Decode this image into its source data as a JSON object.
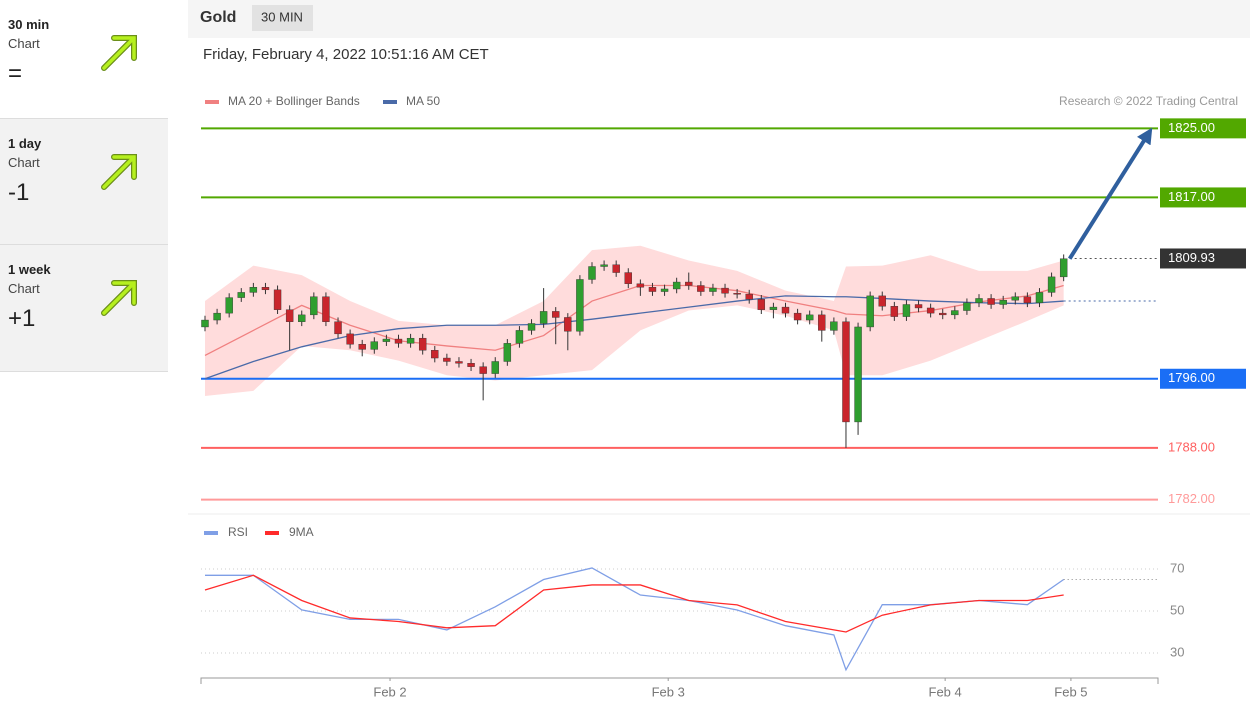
{
  "sidebar": [
    {
      "period": "30 min",
      "kind": "Chart",
      "signal": "="
    },
    {
      "period": "1 day",
      "kind": "Chart",
      "signal": "-1"
    },
    {
      "period": "1 week",
      "kind": "Chart",
      "signal": "+1"
    }
  ],
  "chart_data": [
    {
      "type": "candlestick",
      "title": "Gold",
      "timeframe": "30 MIN",
      "subtitle": "Friday, February 4, 2022 10:51:16 AM CET",
      "credit": "Research © 2022 Trading Central",
      "up_color": "#2f9e2f",
      "down_color": "#c9252c",
      "xlim": [
        -0.33,
        78.8
      ],
      "ylim": [
        1780.8,
        1826.2
      ],
      "open": [
        1802.0,
        1802.8,
        1803.6,
        1805.4,
        1806.0,
        1806.6,
        1806.3,
        1804.0,
        1802.6,
        1803.4,
        1805.5,
        1802.6,
        1801.2,
        1800.0,
        1799.4,
        1800.3,
        1800.6,
        1800.1,
        1800.7,
        1799.3,
        1798.4,
        1798.0,
        1797.8,
        1797.4,
        1796.6,
        1798.0,
        1800.1,
        1801.6,
        1802.4,
        1803.8,
        1803.1,
        1801.5,
        1807.5,
        1809.0,
        1809.2,
        1808.3,
        1807.0,
        1806.6,
        1806.1,
        1806.4,
        1807.2,
        1806.8,
        1806.1,
        1806.5,
        1805.9,
        1805.8,
        1805.2,
        1804.0,
        1804.3,
        1803.6,
        1802.8,
        1803.4,
        1801.6,
        1802.6,
        1791.0,
        1802.0,
        1805.6,
        1804.4,
        1803.2,
        1804.6,
        1804.2,
        1803.6,
        1803.4,
        1803.9,
        1804.8,
        1805.3,
        1804.6,
        1805.1,
        1805.5,
        1804.8,
        1806.0,
        1807.8
      ],
      "high": [
        1803.3,
        1804.1,
        1805.9,
        1806.5,
        1807.1,
        1807.1,
        1806.8,
        1804.5,
        1803.9,
        1806.0,
        1806.0,
        1803.1,
        1801.7,
        1800.5,
        1800.8,
        1801.1,
        1801.1,
        1801.2,
        1801.2,
        1799.8,
        1798.9,
        1798.5,
        1798.3,
        1797.9,
        1798.5,
        1800.6,
        1802.1,
        1802.9,
        1806.5,
        1804.3,
        1803.6,
        1808.0,
        1809.5,
        1809.7,
        1809.7,
        1808.8,
        1807.5,
        1807.1,
        1806.9,
        1807.7,
        1808.3,
        1807.3,
        1807.0,
        1807.0,
        1806.4,
        1806.3,
        1805.7,
        1804.8,
        1804.8,
        1804.1,
        1803.9,
        1803.9,
        1803.1,
        1803.1,
        1802.5,
        1806.1,
        1806.1,
        1804.9,
        1805.1,
        1805.1,
        1804.7,
        1804.1,
        1804.4,
        1805.3,
        1805.8,
        1805.8,
        1805.6,
        1806.0,
        1806.0,
        1806.5,
        1808.3,
        1810.4
      ],
      "low": [
        1801.5,
        1802.3,
        1803.1,
        1804.9,
        1805.5,
        1805.8,
        1803.5,
        1799.3,
        1802.1,
        1802.9,
        1802.1,
        1800.7,
        1799.5,
        1798.6,
        1798.9,
        1799.8,
        1799.6,
        1799.6,
        1798.8,
        1797.9,
        1797.5,
        1797.3,
        1796.9,
        1793.5,
        1796.1,
        1797.5,
        1799.6,
        1801.1,
        1801.9,
        1800.0,
        1799.3,
        1801.0,
        1807.0,
        1808.5,
        1807.8,
        1806.5,
        1805.6,
        1805.6,
        1805.6,
        1805.9,
        1806.3,
        1805.6,
        1805.6,
        1805.4,
        1805.3,
        1804.7,
        1803.5,
        1803.0,
        1803.1,
        1802.3,
        1802.3,
        1800.3,
        1801.1,
        1788.0,
        1789.5,
        1801.5,
        1803.9,
        1802.7,
        1802.7,
        1803.7,
        1803.1,
        1802.9,
        1802.9,
        1803.4,
        1804.3,
        1804.1,
        1804.1,
        1804.6,
        1804.3,
        1804.3,
        1805.5,
        1807.3
      ],
      "close": [
        1802.8,
        1803.6,
        1805.4,
        1806.0,
        1806.6,
        1806.3,
        1804.0,
        1802.6,
        1803.4,
        1805.5,
        1802.6,
        1801.2,
        1800.0,
        1799.4,
        1800.3,
        1800.6,
        1800.1,
        1800.7,
        1799.3,
        1798.4,
        1798.0,
        1797.8,
        1797.4,
        1796.6,
        1798.0,
        1800.1,
        1801.6,
        1802.4,
        1803.8,
        1803.1,
        1801.5,
        1807.5,
        1809.0,
        1809.2,
        1808.3,
        1807.0,
        1806.6,
        1806.1,
        1806.4,
        1807.2,
        1806.8,
        1806.1,
        1806.5,
        1805.9,
        1805.8,
        1805.2,
        1804.0,
        1804.3,
        1803.6,
        1802.8,
        1803.4,
        1801.6,
        1802.6,
        1791.0,
        1802.0,
        1805.6,
        1804.4,
        1803.2,
        1804.6,
        1804.2,
        1803.6,
        1803.4,
        1803.9,
        1804.8,
        1805.3,
        1804.6,
        1805.1,
        1805.5,
        1804.8,
        1806.0,
        1807.8,
        1809.9
      ],
      "line_x": [
        0,
        4,
        8,
        12,
        16,
        20,
        24,
        28,
        32,
        36,
        40,
        44,
        48,
        52,
        53,
        56,
        60,
        64,
        68,
        71
      ],
      "series": [
        {
          "name": "MA 20 + Bollinger Bands",
          "color": "#f08080",
          "band_color": "#ffdcdc",
          "values": [
            1798.7,
            1801.6,
            1804.5,
            1802.2,
            1800.4,
            1799.8,
            1799.3,
            1801.0,
            1805.0,
            1806.8,
            1806.8,
            1806.2,
            1805.0,
            1803.9,
            1803.5,
            1803.3,
            1803.9,
            1804.9,
            1805.6,
            1806.8
          ],
          "upper": [
            1805.0,
            1809.1,
            1808.0,
            1805.0,
            1802.7,
            1802.2,
            1802.2,
            1805.0,
            1810.9,
            1811.4,
            1809.7,
            1808.5,
            1806.2,
            1805.0,
            1809.0,
            1809.1,
            1810.3,
            1808.5,
            1808.5,
            1809.7
          ],
          "lower": [
            1794.0,
            1794.6,
            1799.8,
            1799.3,
            1798.1,
            1796.4,
            1795.8,
            1796.4,
            1797.0,
            1801.6,
            1803.9,
            1804.5,
            1803.3,
            1801.6,
            1796.4,
            1796.4,
            1798.1,
            1800.4,
            1802.7,
            1804.5
          ]
        },
        {
          "name": "MA 50",
          "color": "#4a6aa8",
          "extend_last": true,
          "values": [
            1796.0,
            1798.0,
            1799.7,
            1801.0,
            1801.8,
            1802.2,
            1802.2,
            1802.3,
            1802.9,
            1803.6,
            1804.3,
            1805.0,
            1805.6,
            1805.5,
            1805.5,
            1805.3,
            1805.0,
            1804.8,
            1804.7,
            1805.0
          ]
        }
      ],
      "levels": [
        {
          "value": 1825,
          "label": "1825.00",
          "color": "#52a800",
          "style": "solid",
          "tag": true
        },
        {
          "value": 1817,
          "label": "1817.00",
          "color": "#52a800",
          "style": "solid",
          "tag": true
        },
        {
          "value": 1809.93,
          "label": "1809.93",
          "color": "#333333",
          "style": "dotted",
          "tag": true
        },
        {
          "value": 1796,
          "label": "1796.00",
          "color": "#1a6ef5",
          "style": "solid",
          "tag": true
        },
        {
          "value": 1788,
          "label": "1788.00",
          "color": "#ff6060",
          "style": "solid",
          "tag": false
        },
        {
          "value": 1782,
          "label": "1782.00",
          "color": "#ff9a9a",
          "style": "solid",
          "tag": false
        }
      ]
    },
    {
      "type": "line",
      "xlim": [
        -0.33,
        78.8
      ],
      "ylim": [
        20,
        80
      ],
      "yticks": [
        30,
        50,
        70
      ],
      "grid": true,
      "x": [
        0,
        4,
        8,
        12,
        16,
        20,
        24,
        28,
        32,
        36,
        40,
        44,
        48,
        52,
        53,
        56,
        60,
        64,
        68,
        71
      ],
      "xticks": [
        {
          "value": 15.3,
          "label": "Feb 2"
        },
        {
          "value": 38.3,
          "label": "Feb 3"
        },
        {
          "value": 61.2,
          "label": "Feb 4"
        },
        {
          "value": 71.6,
          "label": "Feb 5"
        }
      ],
      "series": [
        {
          "name": "RSI",
          "color": "#7f9fe6",
          "extend_last": true,
          "values": [
            67,
            67,
            50.5,
            46,
            46,
            41,
            52,
            65,
            70.5,
            57.6,
            55,
            50.5,
            43,
            38.6,
            22,
            53,
            53,
            55,
            53,
            65
          ]
        },
        {
          "name": "9MA",
          "color": "#ff2b2b",
          "values": [
            60,
            67,
            55,
            46.7,
            45,
            42,
            43,
            60,
            62.4,
            62.4,
            55,
            52.9,
            45,
            41,
            40,
            48,
            52.9,
            55,
            55,
            57.6
          ]
        }
      ]
    }
  ]
}
